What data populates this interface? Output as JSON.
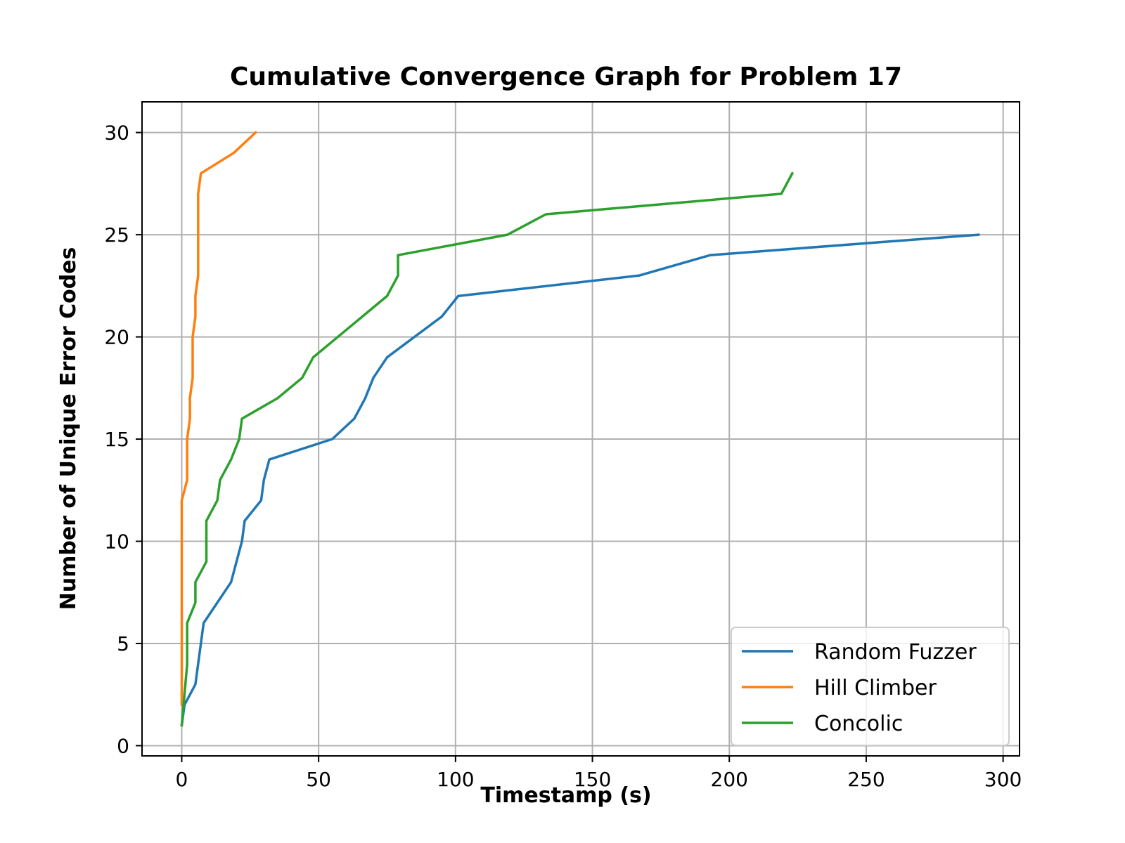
{
  "chart_data": {
    "type": "line",
    "title": "Cumulative Convergence Graph for Problem 17",
    "xlabel": "Timestamp (s)",
    "ylabel": "Number of Unique Error Codes",
    "xlim": [
      -14.5,
      306
    ],
    "ylim": [
      -0.5,
      31.5
    ],
    "xticks": [
      0,
      50,
      100,
      150,
      200,
      250,
      300
    ],
    "yticks": [
      0,
      5,
      10,
      15,
      20,
      25,
      30
    ],
    "grid": true,
    "legend_position": "lower right",
    "series": [
      {
        "name": "Random Fuzzer",
        "color": "#1f77b4",
        "x": [
          0,
          1,
          5,
          8,
          18,
          22,
          23,
          29,
          30,
          32,
          55,
          63,
          67,
          70,
          75,
          95,
          101,
          167,
          193,
          291
        ],
        "y": [
          1,
          2,
          3,
          6,
          8,
          10,
          11,
          12,
          13,
          14,
          15,
          16,
          17,
          18,
          19,
          21,
          22,
          23,
          24,
          25
        ]
      },
      {
        "name": "Hill Climber",
        "color": "#ff7f0e",
        "x": [
          0,
          0,
          2,
          2,
          3,
          3,
          4,
          4,
          5,
          5,
          6,
          6,
          7,
          19,
          27
        ],
        "y": [
          2,
          12,
          13,
          15,
          16,
          17,
          18,
          20,
          21,
          22,
          23,
          27,
          28,
          29,
          30
        ]
      },
      {
        "name": "Concolic",
        "color": "#2ca02c",
        "x": [
          0,
          2,
          2,
          5,
          5,
          9,
          9,
          13,
          14,
          18,
          21,
          22,
          35,
          44,
          48,
          75,
          79,
          79,
          119,
          133,
          219,
          223
        ],
        "y": [
          1,
          4,
          6,
          7,
          8,
          9,
          11,
          12,
          13,
          14,
          15,
          16,
          17,
          18,
          19,
          22,
          23,
          24,
          25,
          26,
          27,
          28
        ]
      }
    ]
  }
}
